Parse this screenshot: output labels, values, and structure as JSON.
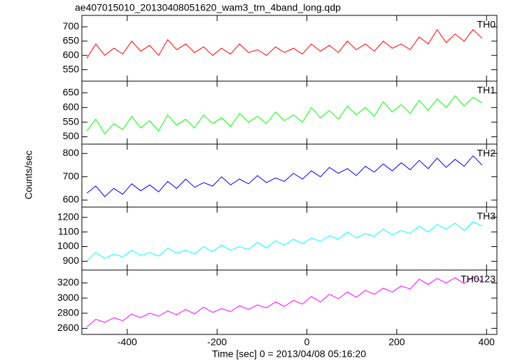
{
  "chart_data": [
    {
      "type": "line",
      "title": "ae407015010_20130408051620_wam3_trn_4band_long.qdp",
      "x": [
        -490,
        -470,
        -450,
        -430,
        -410,
        -390,
        -370,
        -350,
        -330,
        -310,
        -290,
        -270,
        -250,
        -230,
        -210,
        -190,
        -170,
        -150,
        -130,
        -110,
        -90,
        -70,
        -50,
        -30,
        -10,
        10,
        30,
        50,
        70,
        90,
        110,
        130,
        150,
        170,
        190,
        210,
        230,
        250,
        270,
        290,
        310,
        330,
        350,
        370,
        390
      ],
      "series": [
        {
          "name": "TH0",
          "color": "#ff0000",
          "values": [
            590,
            640,
            600,
            625,
            605,
            650,
            615,
            635,
            600,
            655,
            620,
            640,
            610,
            630,
            600,
            625,
            605,
            640,
            610,
            620,
            600,
            630,
            610,
            625,
            605,
            640,
            615,
            635,
            610,
            650,
            620,
            640,
            615,
            650,
            625,
            640,
            620,
            665,
            640,
            690,
            645,
            675,
            650,
            690,
            660
          ]
        }
      ],
      "xlim": [
        -501,
        423
      ],
      "xticks": [
        -400,
        -200,
        0,
        200,
        400
      ],
      "ylim": [
        510,
        740
      ],
      "yticks": [
        550,
        600,
        650,
        700
      ]
    },
    {
      "type": "line",
      "x": [
        -490,
        -470,
        -450,
        -430,
        -410,
        -390,
        -370,
        -350,
        -330,
        -310,
        -290,
        -270,
        -250,
        -230,
        -210,
        -190,
        -170,
        -150,
        -130,
        -110,
        -90,
        -70,
        -50,
        -30,
        -10,
        10,
        30,
        50,
        70,
        90,
        110,
        130,
        150,
        170,
        190,
        210,
        230,
        250,
        270,
        290,
        310,
        330,
        350,
        370,
        390
      ],
      "series": [
        {
          "name": "TH1",
          "color": "#00ff00",
          "values": [
            520,
            560,
            510,
            545,
            525,
            570,
            530,
            555,
            520,
            575,
            540,
            560,
            530,
            575,
            545,
            565,
            535,
            580,
            550,
            570,
            545,
            585,
            555,
            575,
            550,
            600,
            565,
            590,
            560,
            605,
            575,
            600,
            570,
            620,
            585,
            610,
            580,
            625,
            590,
            630,
            600,
            640,
            605,
            635,
            615
          ]
        }
      ],
      "xlim": [
        -501,
        423
      ],
      "xticks": [
        -400,
        -200,
        0,
        200,
        400
      ],
      "ylim": [
        475,
        690
      ],
      "yticks": [
        500,
        550,
        600,
        650
      ]
    },
    {
      "type": "line",
      "ylabel": "Counts/sec",
      "x": [
        -490,
        -470,
        -450,
        -430,
        -410,
        -390,
        -370,
        -350,
        -330,
        -310,
        -290,
        -270,
        -250,
        -230,
        -210,
        -190,
        -170,
        -150,
        -130,
        -110,
        -90,
        -70,
        -50,
        -30,
        -10,
        10,
        30,
        50,
        70,
        90,
        110,
        130,
        150,
        170,
        190,
        210,
        230,
        250,
        270,
        290,
        310,
        330,
        350,
        370,
        390
      ],
      "series": [
        {
          "name": "TH2",
          "color": "#0000ff",
          "values": [
            630,
            660,
            615,
            650,
            625,
            670,
            640,
            665,
            635,
            680,
            650,
            690,
            655,
            675,
            660,
            700,
            665,
            690,
            670,
            705,
            675,
            695,
            680,
            715,
            690,
            725,
            700,
            740,
            715,
            735,
            705,
            745,
            720,
            755,
            725,
            760,
            730,
            770,
            735,
            780,
            740,
            775,
            745,
            790,
            750
          ]
        }
      ],
      "xlim": [
        -501,
        423
      ],
      "xticks": [
        -400,
        -200,
        0,
        200,
        400
      ],
      "ylim": [
        570,
        840
      ],
      "yticks": [
        600,
        700,
        800
      ]
    },
    {
      "type": "line",
      "x": [
        -490,
        -470,
        -450,
        -430,
        -410,
        -390,
        -370,
        -350,
        -330,
        -310,
        -290,
        -270,
        -250,
        -230,
        -210,
        -190,
        -170,
        -150,
        -130,
        -110,
        -90,
        -70,
        -50,
        -30,
        -10,
        10,
        30,
        50,
        70,
        90,
        110,
        130,
        150,
        170,
        190,
        210,
        230,
        250,
        270,
        290,
        310,
        330,
        350,
        370,
        390
      ],
      "series": [
        {
          "name": "TH3",
          "color": "#00ffff",
          "values": [
            900,
            960,
            920,
            950,
            930,
            975,
            940,
            960,
            935,
            990,
            955,
            975,
            950,
            1000,
            965,
            1010,
            975,
            1000,
            980,
            1030,
            990,
            1040,
            1010,
            1050,
            1020,
            1060,
            1035,
            1075,
            1050,
            1100,
            1060,
            1090,
            1070,
            1120,
            1080,
            1110,
            1090,
            1140,
            1100,
            1150,
            1120,
            1160,
            1110,
            1170,
            1140
          ]
        }
      ],
      "xlim": [
        -501,
        423
      ],
      "xticks": [
        -400,
        -200,
        0,
        200,
        400
      ],
      "ylim": [
        840,
        1270
      ],
      "yticks": [
        900,
        1000,
        1100,
        1200
      ]
    },
    {
      "type": "line",
      "xlabel": "Time [sec] 0 = 2013/04/08 05:16:20",
      "x": [
        -490,
        -470,
        -450,
        -430,
        -410,
        -390,
        -370,
        -350,
        -330,
        -310,
        -290,
        -270,
        -250,
        -230,
        -210,
        -190,
        -170,
        -150,
        -130,
        -110,
        -90,
        -70,
        -50,
        -30,
        -10,
        10,
        30,
        50,
        70,
        90,
        110,
        130,
        150,
        170,
        190,
        210,
        230,
        250,
        270,
        290,
        310,
        330,
        350,
        370,
        390
      ],
      "series": [
        {
          "name": "TH0123",
          "color": "#ff00ff",
          "values": [
            2620,
            2720,
            2680,
            2740,
            2700,
            2790,
            2740,
            2800,
            2760,
            2830,
            2780,
            2850,
            2790,
            2880,
            2810,
            2860,
            2820,
            2900,
            2850,
            2910,
            2870,
            2950,
            2890,
            2970,
            2920,
            3020,
            2950,
            3050,
            2990,
            3080,
            3010,
            3100,
            3050,
            3130,
            3080,
            3160,
            3120,
            3250,
            3180,
            3260,
            3200,
            3270,
            3190,
            3280,
            3220
          ]
        }
      ],
      "xlim": [
        -501,
        423
      ],
      "xticks": [
        -400,
        -200,
        0,
        200,
        400
      ],
      "ylim": [
        2520,
        3370
      ],
      "yticks": [
        2600,
        2800,
        3000,
        3200
      ]
    }
  ]
}
